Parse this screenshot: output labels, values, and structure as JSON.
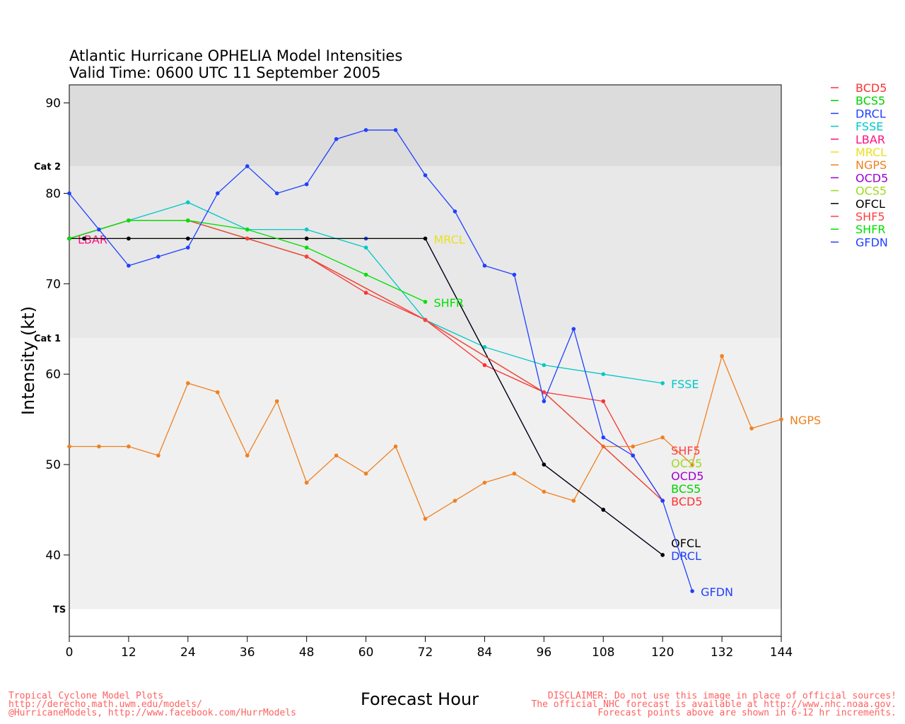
{
  "chart_data": {
    "type": "line",
    "title": "Atlantic Hurricane OPHELIA Model Intensities",
    "subtitle": "Valid Time: 0600 UTC 11 September 2005",
    "xlabel": "Forecast Hour",
    "ylabel": "Intensity (kt)",
    "xlim": [
      0,
      144
    ],
    "ylim": [
      31,
      92
    ],
    "xticks": [
      "0",
      "12",
      "24",
      "36",
      "48",
      "60",
      "72",
      "84",
      "96",
      "108",
      "120",
      "132",
      "144"
    ],
    "yticks": [
      "40",
      "50",
      "60",
      "70",
      "80",
      "90"
    ],
    "bands": [
      {
        "label": "Cat 2",
        "from": 83,
        "to": 92,
        "color": "#dcdcdc"
      },
      {
        "label": "Cat 1",
        "from": 64,
        "to": 83,
        "color": "#e8e8e8"
      },
      {
        "label": "TS",
        "from": 34,
        "to": 64,
        "color": "#f0f0f0"
      }
    ],
    "legend_position": "right",
    "series": [
      {
        "name": "BCD5",
        "color": "#ff3030",
        "x": [
          0,
          12,
          24,
          36,
          48,
          60,
          72,
          84,
          96,
          108,
          114,
          120
        ],
        "y": [
          75,
          77,
          77,
          75,
          73,
          69,
          66,
          61,
          58,
          57,
          51,
          46
        ]
      },
      {
        "name": "BCS5",
        "color": "#00d000",
        "x": [
          0,
          12,
          24,
          36,
          48,
          72,
          96,
          120
        ],
        "y": [
          75,
          77,
          77,
          75,
          73,
          66,
          58,
          46
        ]
      },
      {
        "name": "DRCL",
        "color": "#2040ff",
        "x": [
          0,
          3,
          12,
          24,
          48,
          60,
          72,
          96,
          108,
          120
        ],
        "y": [
          75,
          75,
          75,
          75,
          75,
          75,
          75,
          50,
          45,
          40
        ]
      },
      {
        "name": "FSSE",
        "color": "#00c8c8",
        "x": [
          0,
          12,
          24,
          36,
          48,
          60,
          72,
          84,
          96,
          108,
          120
        ],
        "y": [
          75,
          77,
          79,
          76,
          76,
          74,
          66,
          63,
          61,
          60,
          59
        ]
      },
      {
        "name": "LBAR",
        "color": "#ff1080",
        "x": [
          0
        ],
        "y": [
          75
        ]
      },
      {
        "name": "MRCL",
        "color": "#e8e020",
        "x": [
          0,
          72
        ],
        "y": [
          75,
          75
        ]
      },
      {
        "name": "NGPS",
        "color": "#f08020",
        "x": [
          0,
          6,
          12,
          18,
          24,
          30,
          36,
          42,
          48,
          54,
          60,
          66,
          72,
          78,
          84,
          90,
          96,
          102,
          108,
          114,
          120,
          126,
          132,
          138,
          144
        ],
        "y": [
          52,
          52,
          52,
          51,
          59,
          58,
          51,
          57,
          48,
          51,
          49,
          52,
          44,
          46,
          48,
          49,
          47,
          46,
          52,
          52,
          53,
          50,
          62,
          54,
          55
        ]
      },
      {
        "name": "OCD5",
        "color": "#a000d0",
        "x": [
          48,
          72,
          96,
          120
        ],
        "y": [
          73,
          66,
          58,
          46
        ]
      },
      {
        "name": "OCS5",
        "color": "#a0d820",
        "x": [
          48,
          72,
          96,
          120
        ],
        "y": [
          73,
          66,
          58,
          46
        ]
      },
      {
        "name": "OFCL",
        "color": "#000000",
        "x": [
          0,
          3,
          12,
          24,
          48,
          72,
          96,
          108,
          120
        ],
        "y": [
          75,
          75,
          75,
          75,
          75,
          75,
          50,
          45,
          40
        ]
      },
      {
        "name": "SHF5",
        "color": "#ff4040",
        "x": [
          0,
          12,
          24,
          36,
          48,
          72,
          96,
          120
        ],
        "y": [
          75,
          77,
          77,
          75,
          73,
          66,
          58,
          46
        ]
      },
      {
        "name": "SHFR",
        "color": "#00e000",
        "x": [
          0,
          12,
          24,
          36,
          48,
          60,
          72
        ],
        "y": [
          75,
          77,
          77,
          76,
          74,
          71,
          68
        ]
      },
      {
        "name": "GFDN",
        "color": "#2040ff",
        "x": [
          0,
          6,
          12,
          18,
          24,
          30,
          36,
          42,
          48,
          54,
          60,
          66,
          72,
          78,
          84,
          90,
          96,
          102,
          108,
          114,
          120,
          126
        ],
        "y": [
          80,
          76,
          72,
          73,
          74,
          80,
          83,
          80,
          81,
          86,
          87,
          87,
          82,
          78,
          72,
          71,
          57,
          65,
          53,
          51,
          46,
          36
        ]
      }
    ]
  },
  "footer": {
    "left": [
      "Tropical Cyclone Model Plots",
      "http://derecho.math.uwm.edu/models/",
      "@HurricaneModels, http://www.facebook.com/HurrModels"
    ],
    "right": [
      "DISCLAIMER: Do not use this image in place of official sources!",
      "The official NHC forecast is available at http://www.nhc.noaa.gov.",
      "Forecast points above are shown in 6-12 hr increments."
    ]
  }
}
